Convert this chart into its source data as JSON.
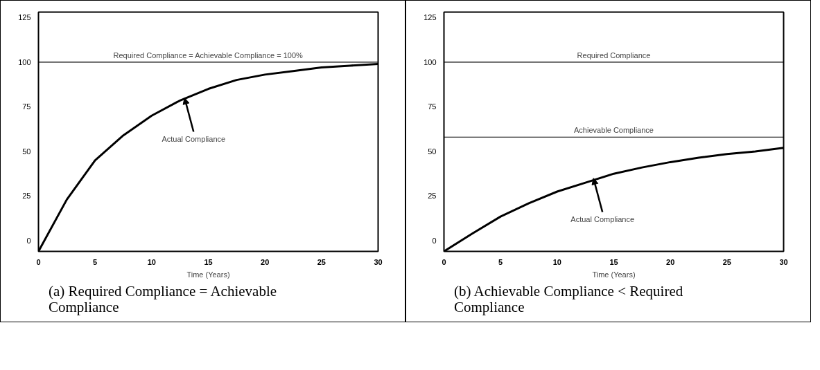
{
  "chart_data": [
    {
      "type": "line",
      "title": "(a)  Required Compliance = Achievable Compliance",
      "xlabel": "Time (Years)",
      "x": [
        0,
        2.5,
        5,
        7.5,
        10,
        12.5,
        15,
        17.5,
        20,
        22.5,
        25,
        27.5,
        30
      ],
      "series": [
        {
          "color": "#000000",
          "values": [
            -6,
            23,
            45,
            59,
            70,
            78.5,
            85,
            90,
            93,
            95,
            97,
            98,
            99
          ]
        }
      ],
      "xlim": [
        0,
        30
      ],
      "xticks": [
        0,
        5,
        10,
        15,
        20,
        25,
        30
      ],
      "ylim": [
        -6,
        128
      ],
      "yticks": [
        0,
        25,
        50,
        75,
        100,
        125
      ],
      "ref_lines": [
        {
          "axis": "y",
          "value": 100,
          "label": "Required Compliance = Achievable Compliance = 100%",
          "color": "#000000"
        }
      ],
      "annotations": [
        {
          "text": "Actual Compliance",
          "x": 12.9,
          "y": 80
        }
      ],
      "grid": false
    },
    {
      "type": "line",
      "title": "(b)  Achievable Compliance < Required Compliance",
      "xlabel": "Time (Years)",
      "x": [
        0,
        2.5,
        5,
        7.5,
        10,
        12.5,
        15,
        17.5,
        20,
        22.5,
        25,
        27.5,
        30
      ],
      "series": [
        {
          "color": "#000000",
          "values": [
            -6,
            4,
            13.5,
            21,
            27.5,
            32.5,
            37.5,
            41,
            44,
            46.5,
            48.5,
            50,
            52
          ]
        }
      ],
      "xlim": [
        0,
        30
      ],
      "xticks": [
        0,
        5,
        10,
        15,
        20,
        25,
        30
      ],
      "ylim": [
        -6,
        128
      ],
      "yticks": [
        0,
        25,
        50,
        75,
        100,
        125
      ],
      "ref_lines": [
        {
          "axis": "y",
          "value": 100,
          "label": "Required Compliance",
          "color": "#000000"
        },
        {
          "axis": "y",
          "value": 58,
          "label": "Achievable Compliance",
          "color": "#000000"
        }
      ],
      "annotations": [
        {
          "text": "Actual Compliance",
          "x": 13.2,
          "y": 35
        }
      ],
      "grid": false
    }
  ]
}
